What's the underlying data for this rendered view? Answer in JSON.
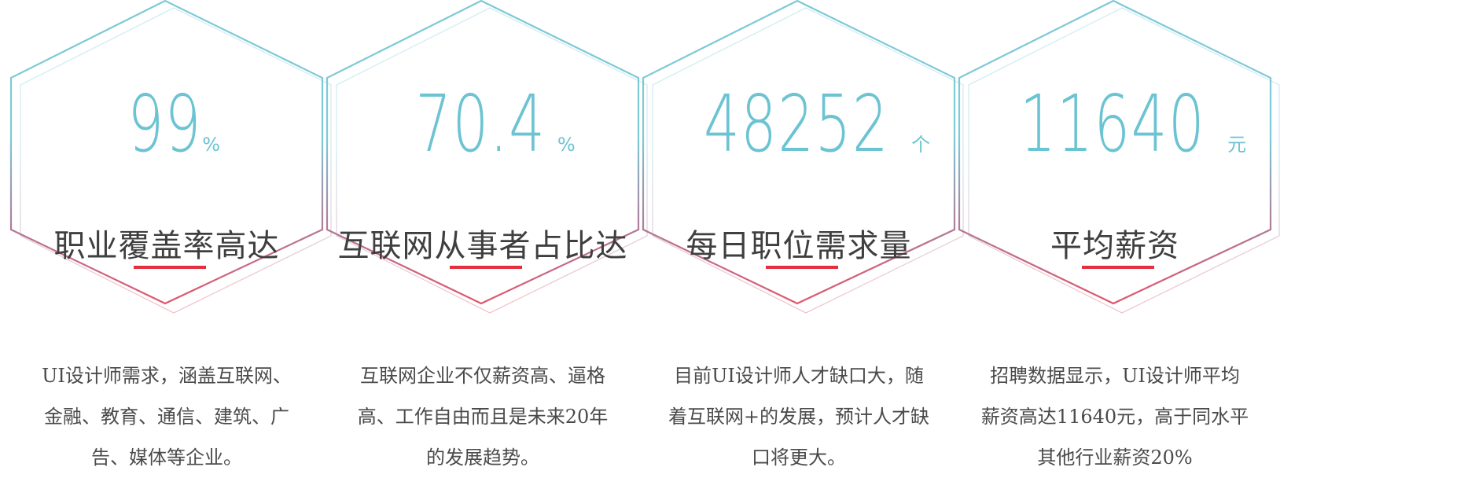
{
  "colors": {
    "number": "#6cc3d2",
    "underline": "#e2303f",
    "hex_top": "#7ec9d6",
    "hex_bottom": "#e0556c"
  },
  "cards": [
    {
      "value": "99",
      "unit": "%",
      "title": "职业覆盖率高达",
      "desc": [
        "UI设计师需求，涵盖互联网、",
        "金融、教育、通信、建筑、广",
        "告、媒体等企业。"
      ]
    },
    {
      "value": "70.4",
      "unit": "%",
      "title": "互联网从事者占比达",
      "desc": [
        "互联网企业不仅薪资高、逼格",
        "高、工作自由而且是未来20年",
        "的发展趋势。"
      ]
    },
    {
      "value": "48252",
      "unit": "个",
      "title": "每日职位需求量",
      "desc": [
        "目前UI设计师人才缺口大，随",
        "着互联网+的发展，预计人才缺",
        "口将更大。"
      ]
    },
    {
      "value": "11640",
      "unit": "元",
      "title": "平均薪资",
      "desc": [
        "招聘数据显示，UI设计师平均",
        "薪资高达11640元，高于同水平",
        "其他行业薪资20%"
      ]
    }
  ]
}
